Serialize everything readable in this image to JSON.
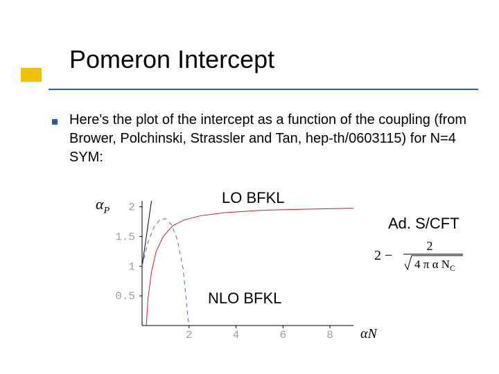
{
  "header": {
    "title": "Pomeron Intercept",
    "yellow_color": "#f2c200",
    "blue_line_color": "#2c5aa0",
    "bullet_color": "#2c5aa0"
  },
  "body": {
    "text": "Here's the plot of the intercept as a function of the coupling (from Brower, Polchinski, Strassler and Tan, hep-th/0603115) for N=4 SYM:"
  },
  "labels": {
    "lo": "LO BFKL",
    "nlo": "NLO BFKL",
    "ads": "Ad. S/CFT"
  },
  "ylabel_svg": {
    "alpha": "α",
    "sub": "P"
  },
  "formula": {
    "prefix": "2 −",
    "numer": "2",
    "denom_sqrt": "4 π α N",
    "denom_sub": "C"
  },
  "chart": {
    "type": "line",
    "xlim": [
      0,
      9
    ],
    "ylim": [
      0,
      2.1
    ],
    "xticks": [
      2,
      4,
      6,
      8
    ],
    "yticks": [
      0.5,
      1,
      1.5,
      2
    ],
    "ytick_labels": [
      "0.5",
      "1",
      "1.5",
      "2"
    ],
    "xtick_labels": [
      "2",
      "4",
      "6",
      "8"
    ],
    "axis_color": "#000000",
    "tick_label_color": "#9f9f9f",
    "tick_label_font": "Courier New",
    "tick_label_fontsize": 16,
    "background_color": "#ffffff",
    "xaxis_label": "αN",
    "series": [
      {
        "name": "lo_bfkl",
        "color": "#000000",
        "width": 1.0,
        "dash": "none",
        "points": [
          [
            0,
            1
          ],
          [
            0.2,
            1.55
          ],
          [
            0.4,
            2.1
          ]
        ]
      },
      {
        "name": "nlo_bfkl",
        "color": "#3a6fd8",
        "width": 1.0,
        "dash": "6,5",
        "points": [
          [
            0,
            1
          ],
          [
            0.25,
            1.4
          ],
          [
            0.5,
            1.65
          ],
          [
            0.75,
            1.78
          ],
          [
            1.0,
            1.8
          ],
          [
            1.25,
            1.7
          ],
          [
            1.5,
            1.45
          ],
          [
            1.75,
            0.95
          ],
          [
            1.95,
            0.15
          ],
          [
            2.0,
            0
          ]
        ]
      },
      {
        "name": "ads_cft",
        "color": "#c02020",
        "width": 1.0,
        "dash": "none",
        "points": [
          [
            0.18,
            0
          ],
          [
            0.25,
            0.45
          ],
          [
            0.4,
            0.9
          ],
          [
            0.6,
            1.25
          ],
          [
            0.9,
            1.5
          ],
          [
            1.3,
            1.68
          ],
          [
            1.8,
            1.78
          ],
          [
            2.5,
            1.85
          ],
          [
            3.5,
            1.9
          ],
          [
            5,
            1.94
          ],
          [
            7,
            1.96
          ],
          [
            9,
            1.975
          ]
        ]
      }
    ]
  }
}
